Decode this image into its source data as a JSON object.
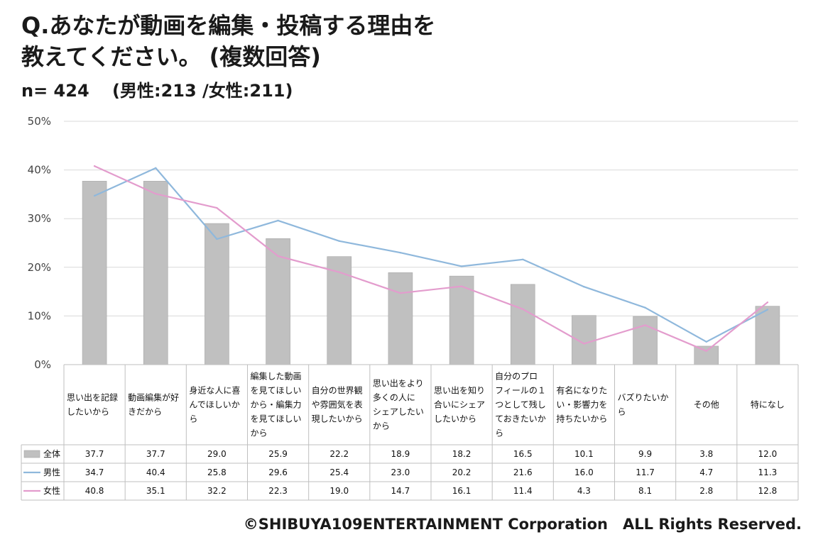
{
  "title_line1": "Q.あなたが動画を編集・投稿する理由を",
  "title_line2": "教えてください。 (複数回答)",
  "subtitle": "n= 424　 (男性:213 /女性:211)",
  "footer": "©SHIBUYA109ENTERTAINMENT Corporation　ALL Rights Reserved.",
  "colors": {
    "total": "#c0c0c0",
    "male": "#8fb8dc",
    "female": "#e39ccd",
    "grid": "#d9d9d9",
    "table": "#bfbfbf"
  },
  "chart_data": {
    "type": "bar",
    "ylim": [
      0,
      50
    ],
    "yticks": [
      "0%",
      "10%",
      "20%",
      "30%",
      "40%",
      "50%"
    ],
    "categories": [
      [
        "思い出を記録",
        "したいから"
      ],
      [
        "動画編集が好",
        "きだから"
      ],
      [
        "身近な人に喜",
        "んでほしいか",
        "ら"
      ],
      [
        "編集した動画",
        "を見てほしい",
        "から・編集力",
        "を見てほしい",
        "から"
      ],
      [
        "自分の世界観",
        "や雰囲気を表",
        "現したいから"
      ],
      [
        "思い出をより",
        "多くの人に",
        "シェアしたい",
        "から"
      ],
      [
        "思い出を知り",
        "合いにシェア",
        "したいから"
      ],
      [
        "自分のプロ",
        "フィールの１",
        "つとして残し",
        "ておきたいか",
        "ら"
      ],
      [
        "有名になりた",
        "い・影響力を",
        "持ちたいから"
      ],
      [
        "バズりたいか",
        "ら"
      ],
      [
        "その他"
      ],
      [
        "特になし"
      ]
    ],
    "series": [
      {
        "name": "全体",
        "type": "bar",
        "values": [
          37.7,
          37.7,
          29.0,
          25.9,
          22.2,
          18.9,
          18.2,
          16.5,
          10.1,
          9.9,
          3.8,
          12.0
        ],
        "labels": [
          "37.7",
          "37.7",
          "29.0",
          "25.9",
          "22.2",
          "18.9",
          "18.2",
          "16.5",
          "10.1",
          "9.9",
          "3.8",
          "12.0"
        ]
      },
      {
        "name": "男性",
        "type": "line",
        "values": [
          34.7,
          40.4,
          25.8,
          29.6,
          25.4,
          23.0,
          20.2,
          21.6,
          16.0,
          11.7,
          4.7,
          11.3
        ],
        "labels": [
          "34.7",
          "40.4",
          "25.8",
          "29.6",
          "25.4",
          "23.0",
          "20.2",
          "21.6",
          "16.0",
          "11.7",
          "4.7",
          "11.3"
        ]
      },
      {
        "name": "女性",
        "type": "line",
        "values": [
          40.8,
          35.1,
          32.2,
          22.3,
          19.0,
          14.7,
          16.1,
          11.4,
          4.3,
          8.1,
          2.8,
          12.8
        ],
        "labels": [
          "40.8",
          "35.1",
          "32.2",
          "22.3",
          "19.0",
          "14.7",
          "16.1",
          "11.4",
          "4.3",
          "8.1",
          "2.8",
          "12.8"
        ]
      }
    ]
  }
}
